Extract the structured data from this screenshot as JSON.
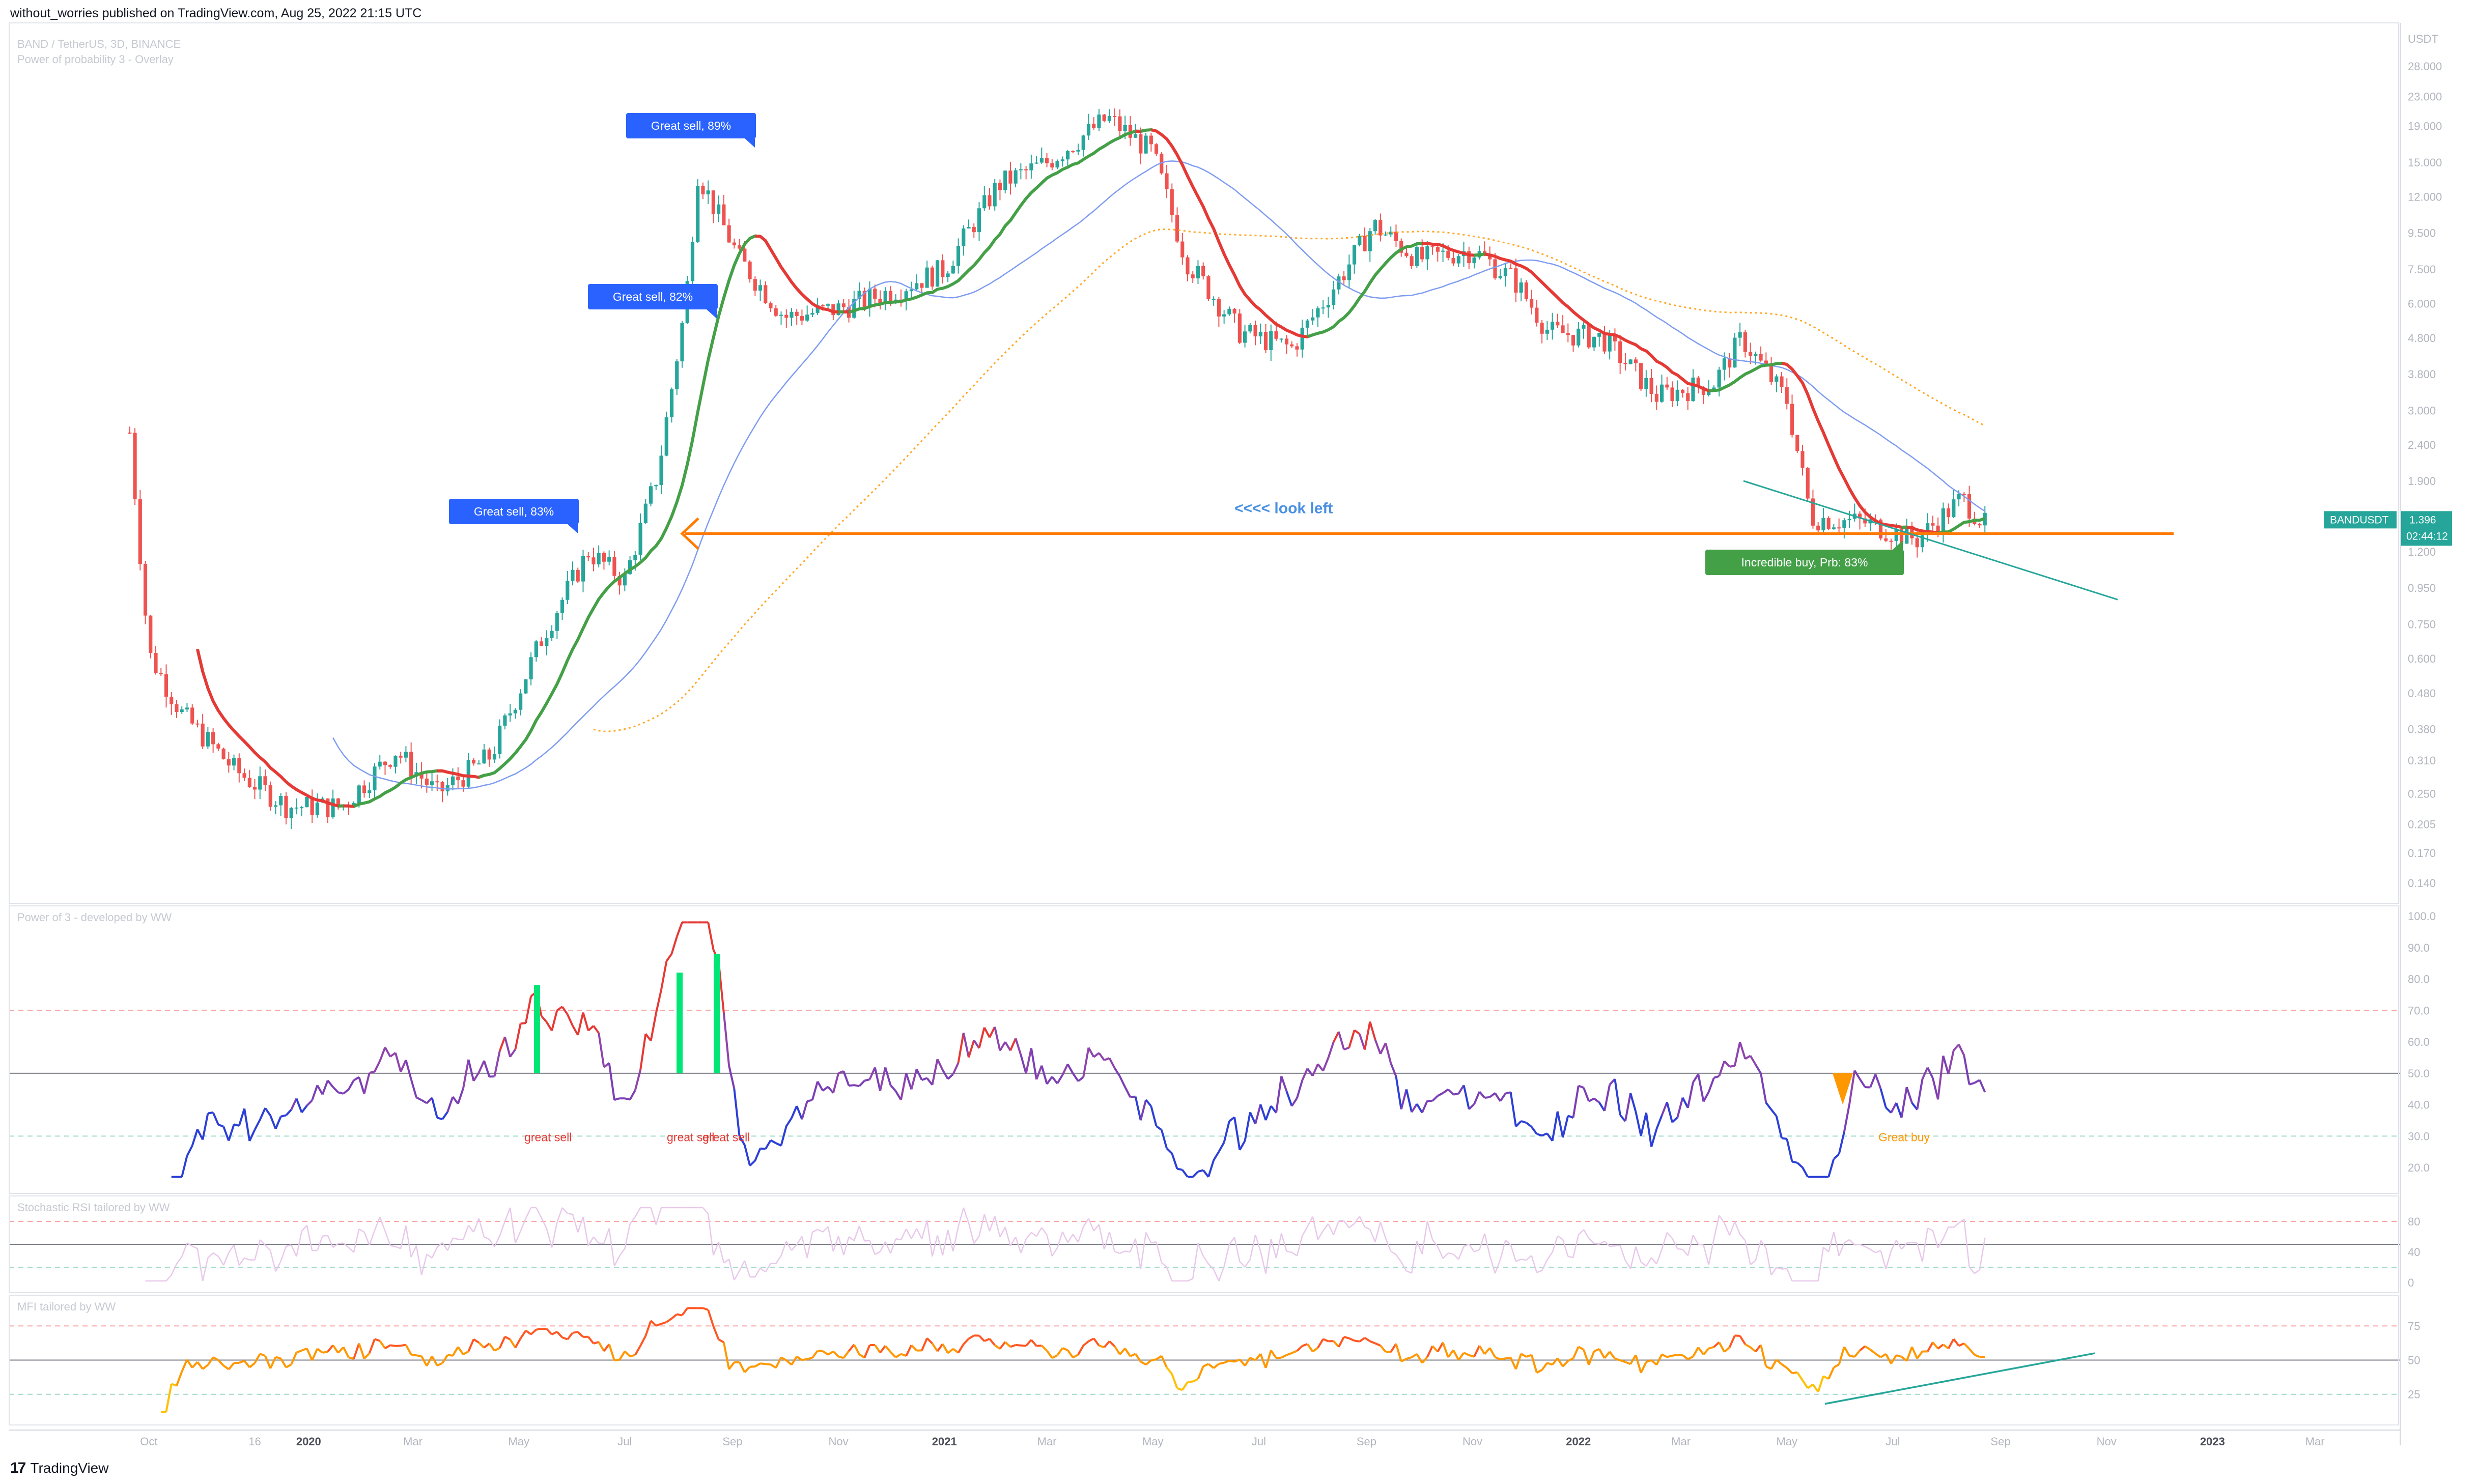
{
  "header": {
    "published": "without_worries published on TradingView.com, Aug 25, 2022 21:15 UTC"
  },
  "footer": {
    "brand": "TradingView"
  },
  "colors": {
    "up": "#26a69a",
    "down": "#ef5350",
    "orange_line": "#ff7b00",
    "green_ma": "#43a047",
    "red_ma": "#e53935",
    "blue_ma": "#7e9cf0",
    "teal_line": "#26a69a",
    "badge_blue": "#2962ff",
    "badge_green": "#43a047"
  },
  "chart_data": [
    {
      "type": "line",
      "panel": "price",
      "title": "BAND / TetherUS, 3D, BINANCE",
      "subtitle": "Power of probability 3 - Overlay",
      "ylabel": "USDT",
      "y_scale": "log",
      "y_ticks": [
        "28.000",
        "23.000",
        "19.000",
        "15.000",
        "12.000",
        "9.500",
        "7.500",
        "6.000",
        "4.800",
        "3.800",
        "3.000",
        "2.400",
        "1.900",
        "1.500",
        "1.200",
        "0.950",
        "0.750",
        "0.600",
        "0.480",
        "0.380",
        "0.310",
        "0.250",
        "0.205",
        "0.170",
        "0.140"
      ],
      "x_ticks": [
        "Oct",
        "16",
        "2020",
        "Mar",
        "May",
        "Jul",
        "Sep",
        "Nov",
        "2021",
        "Mar",
        "May",
        "Jul",
        "Sep",
        "Nov",
        "2022",
        "Mar",
        "May",
        "Jul",
        "Sep",
        "Nov",
        "2023",
        "Mar"
      ],
      "ticker": {
        "symbol": "BANDUSDT",
        "price": "1.396",
        "countdown": "02:44:12"
      },
      "approx_close_path": [
        {
          "x": "2019-09-20",
          "y": 2.6
        },
        {
          "x": "2019-10-01",
          "y": 0.62
        },
        {
          "x": "2019-10-20",
          "y": 0.42
        },
        {
          "x": "2019-11-20",
          "y": 0.29
        },
        {
          "x": "2019-12-20",
          "y": 0.23
        },
        {
          "x": "2020-01-20",
          "y": 0.23
        },
        {
          "x": "2020-02-20",
          "y": 0.33
        },
        {
          "x": "2020-03-15",
          "y": 0.25
        },
        {
          "x": "2020-04-15",
          "y": 0.32
        },
        {
          "x": "2020-05-15",
          "y": 0.7
        },
        {
          "x": "2020-06-10",
          "y": 1.2
        },
        {
          "x": "2020-07-01",
          "y": 1.0
        },
        {
          "x": "2020-07-20",
          "y": 2.0
        },
        {
          "x": "2020-08-05",
          "y": 6.0
        },
        {
          "x": "2020-08-12",
          "y": 14.0
        },
        {
          "x": "2020-09-05",
          "y": 8.0
        },
        {
          "x": "2020-10-01",
          "y": 5.5
        },
        {
          "x": "2020-11-01",
          "y": 5.8
        },
        {
          "x": "2020-12-01",
          "y": 6.5
        },
        {
          "x": "2021-01-01",
          "y": 7.5
        },
        {
          "x": "2021-02-01",
          "y": 13.0
        },
        {
          "x": "2021-03-01",
          "y": 15.0
        },
        {
          "x": "2021-04-05",
          "y": 20.0
        },
        {
          "x": "2021-05-01",
          "y": 16.0
        },
        {
          "x": "2021-05-20",
          "y": 8.0
        },
        {
          "x": "2021-06-20",
          "y": 5.0
        },
        {
          "x": "2021-07-20",
          "y": 4.5
        },
        {
          "x": "2021-08-20",
          "y": 7.5
        },
        {
          "x": "2021-09-05",
          "y": 10.0
        },
        {
          "x": "2021-10-01",
          "y": 8.0
        },
        {
          "x": "2021-11-01",
          "y": 8.5
        },
        {
          "x": "2021-11-25",
          "y": 7.0
        },
        {
          "x": "2021-12-15",
          "y": 5.0
        },
        {
          "x": "2022-01-15",
          "y": 4.8
        },
        {
          "x": "2022-02-15",
          "y": 3.3
        },
        {
          "x": "2022-03-20",
          "y": 3.6
        },
        {
          "x": "2022-04-05",
          "y": 4.8
        },
        {
          "x": "2022-05-01",
          "y": 3.2
        },
        {
          "x": "2022-05-15",
          "y": 1.5
        },
        {
          "x": "2022-06-15",
          "y": 1.45
        },
        {
          "x": "2022-07-15",
          "y": 1.3
        },
        {
          "x": "2022-08-10",
          "y": 1.7
        },
        {
          "x": "2022-08-25",
          "y": 1.396
        }
      ],
      "annotations": [
        {
          "label": "Great sell, 89%",
          "style": "blue"
        },
        {
          "label": "Great sell, 82%",
          "style": "blue"
        },
        {
          "label": "Great sell, 83%",
          "style": "blue"
        },
        {
          "label": "<<<< look left",
          "style": "blue_text"
        },
        {
          "label": "Incredible buy, Prb: 83%",
          "style": "green"
        }
      ],
      "horizontal_level": 1.35,
      "grid": false
    },
    {
      "type": "line",
      "panel": "power3",
      "title": "Power of 3 - developed by WW",
      "y_ticks": [
        "100.0",
        "90.0",
        "80.0",
        "70.0",
        "60.0",
        "50.0",
        "40.0",
        "30.0",
        "20.0"
      ],
      "ylim": [
        15,
        100
      ],
      "levels": [
        70,
        50,
        30
      ],
      "annotations": [
        "great sell",
        "great sell",
        "great sell",
        "Great buy"
      ]
    },
    {
      "type": "line",
      "panel": "stoch_rsi",
      "title": "Stochastic RSI tailored by WW",
      "y_ticks": [
        "80",
        "40",
        "0"
      ],
      "ylim": [
        0,
        100
      ],
      "levels": [
        80,
        50,
        20
      ]
    },
    {
      "type": "line",
      "panel": "mfi",
      "title": "MFI tailored by WW",
      "y_ticks": [
        "75",
        "50",
        "25"
      ],
      "ylim": [
        10,
        90
      ],
      "levels": [
        75,
        50,
        25
      ]
    }
  ]
}
